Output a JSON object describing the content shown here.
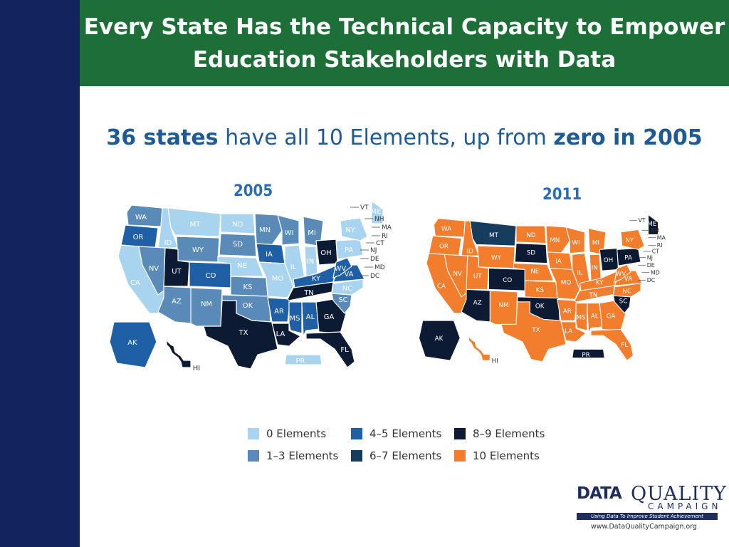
{
  "slide": {
    "title_line1": "Every State Has the Technical Capacity to Empower",
    "title_line2": "Education Stakeholders with Data",
    "subtitle": {
      "bold1": "36 states",
      "mid": " have all 10 Elements, up from ",
      "bold2": "zero in 2005"
    }
  },
  "legend": [
    {
      "key": "c0",
      "label": "0 Elements"
    },
    {
      "key": "c13",
      "label": "1–3 Elements"
    },
    {
      "key": "c45",
      "label": "4–5 Elements"
    },
    {
      "key": "c67",
      "label": "6–7 Elements"
    },
    {
      "key": "c89",
      "label": "8–9 Elements"
    },
    {
      "key": "c10",
      "label": "10 Elements"
    }
  ],
  "colors": {
    "c0": "#a8d4ef",
    "c13": "#5a8ab8",
    "c45": "#1f5fa6",
    "c67": "#163c5e",
    "c89": "#0d1a33",
    "c10": "#f27d2c",
    "header": "#1d6f37",
    "sidebar": "#13245c"
  },
  "maps": [
    {
      "year": "2005",
      "states": {
        "WA": "c13",
        "OR": "c45",
        "CA": "c0",
        "ID": "c0",
        "NV": "c13",
        "MT": "c0",
        "WY": "c13",
        "UT": "c89",
        "AZ": "c13",
        "CO": "c45",
        "NM": "c13",
        "ND": "c0",
        "SD": "c13",
        "NE": "c0",
        "KS": "c13",
        "OK": "c13",
        "TX": "c89",
        "MN": "c13",
        "IA": "c45",
        "MO": "c0",
        "AR": "c45",
        "LA": "c89",
        "WI": "c13",
        "IL": "c0",
        "MI": "c13",
        "IN": "c0",
        "OH": "c89",
        "KY": "c45",
        "TN": "c89",
        "MS": "c45",
        "AL": "c45",
        "GA": "c89",
        "FL": "c89",
        "SC": "c13",
        "NC": "c0",
        "VA": "c45",
        "WV": "c45",
        "PA": "c0",
        "NY": "c0",
        "ME": "c0",
        "AK": "c45",
        "HI": "c89",
        "PR": "c0"
      }
    },
    {
      "year": "2011",
      "states": {
        "WA": "c10",
        "OR": "c10",
        "CA": "c10",
        "ID": "c10",
        "NV": "c10",
        "MT": "c67",
        "WY": "c10",
        "UT": "c10",
        "AZ": "c89",
        "CO": "c89",
        "NM": "c10",
        "ND": "c10",
        "SD": "c89",
        "NE": "c10",
        "KS": "c10",
        "OK": "c89",
        "TX": "c10",
        "MN": "c10",
        "IA": "c10",
        "MO": "c10",
        "AR": "c10",
        "LA": "c10",
        "WI": "c10",
        "IL": "c10",
        "MI": "c10",
        "IN": "c10",
        "OH": "c89",
        "KY": "c10",
        "TN": "c10",
        "MS": "c10",
        "AL": "c10",
        "GA": "c10",
        "FL": "c10",
        "SC": "c89",
        "NC": "c10",
        "VA": "c10",
        "WV": "c10",
        "PA": "c89",
        "NY": "c10",
        "ME": "c89",
        "AK": "c89",
        "HI": "c10",
        "PR": "c89"
      }
    }
  ],
  "small_state_labels": [
    "VT",
    "NH",
    "MA",
    "RI",
    "CT",
    "NJ",
    "DE",
    "MD",
    "DC"
  ],
  "logo": {
    "data": "DATA",
    "quality": "QUALITY",
    "campaign": "CAMPAIGN",
    "tagline": "Using Data To Improve Student Achievement",
    "url": "www.DataQualityCampaign.org"
  }
}
